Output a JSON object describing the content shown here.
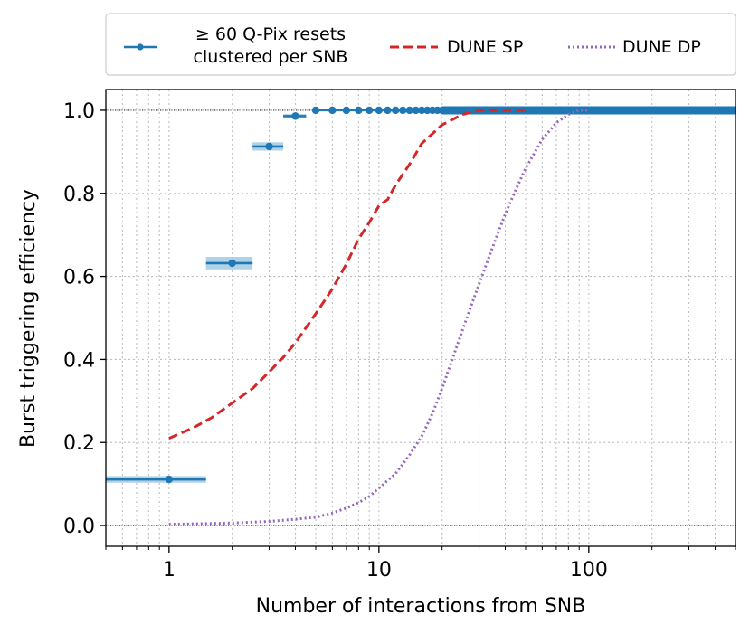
{
  "chart_data": {
    "type": "line",
    "xscale": "log",
    "xlim": [
      0.5,
      500
    ],
    "ylim": [
      -0.05,
      1.05
    ],
    "xlabel": "Number of interactions from SNB",
    "ylabel": "Burst triggering efficiency",
    "x_ticks": [
      {
        "value": 1,
        "label": "1"
      },
      {
        "value": 10,
        "label": "10"
      },
      {
        "value": 100,
        "label": "100"
      }
    ],
    "y_ticks": [
      {
        "value": 0.0,
        "label": "0.0"
      },
      {
        "value": 0.2,
        "label": "0.2"
      },
      {
        "value": 0.4,
        "label": "0.4"
      },
      {
        "value": 0.6,
        "label": "0.6"
      },
      {
        "value": 0.8,
        "label": "0.8"
      },
      {
        "value": 1.0,
        "label": "1.0"
      }
    ],
    "grid": true,
    "reference_lines_y": [
      0.0,
      1.0
    ],
    "legend": {
      "placement": "top-outside",
      "entries": [
        {
          "key": "qpix",
          "line1": "≥ 60 Q-Pix resets",
          "line2": "clustered per SNB"
        },
        {
          "key": "sp",
          "label": "DUNE SP"
        },
        {
          "key": "dp",
          "label": "DUNE DP"
        }
      ]
    },
    "colors": {
      "qpix": "#1f77b4",
      "qpix_band": "#a6cde6",
      "sp": "#d62728",
      "dp": "#9467bd"
    },
    "series": [
      {
        "name": "≥ 60 Q-Pix resets clustered per SNB",
        "key": "qpix",
        "style": "dots-with-step-bands",
        "points": [
          {
            "x": 1,
            "y": 0.111,
            "band_lo": 0.5,
            "band_hi": 1.5,
            "err": 0.008
          },
          {
            "x": 2,
            "y": 0.632,
            "band_lo": 1.5,
            "band_hi": 2.5,
            "err": 0.015
          },
          {
            "x": 3,
            "y": 0.913,
            "band_lo": 2.5,
            "band_hi": 3.5,
            "err": 0.01
          },
          {
            "x": 4,
            "y": 0.986,
            "band_lo": 3.5,
            "band_hi": 4.5,
            "err": 0.005
          },
          {
            "x": 5,
            "y": 1.0
          },
          {
            "x": 6,
            "y": 1.0
          },
          {
            "x": 7,
            "y": 1.0
          },
          {
            "x": 8,
            "y": 1.0
          },
          {
            "x": 9,
            "y": 1.0
          },
          {
            "x": 10,
            "y": 1.0
          },
          {
            "x": 11,
            "y": 1.0
          },
          {
            "x": 12,
            "y": 1.0
          },
          {
            "x": 13,
            "y": 1.0
          },
          {
            "x": 14,
            "y": 1.0
          },
          {
            "x": 15,
            "y": 1.0
          },
          {
            "x": 16,
            "y": 1.0
          },
          {
            "x": 17,
            "y": 1.0
          },
          {
            "x": 18,
            "y": 1.0
          },
          {
            "x": 19,
            "y": 1.0
          },
          {
            "x": 20,
            "y": 1.0
          }
        ],
        "tail_line": {
          "from": 20,
          "to": 500,
          "y": 1.0
        }
      },
      {
        "name": "DUNE SP",
        "key": "sp",
        "style": "dashed",
        "x": [
          1,
          1.3,
          1.6,
          2,
          2.5,
          3,
          3.5,
          4,
          5,
          6,
          7,
          8,
          9,
          10,
          11,
          12,
          14,
          16,
          20,
          25,
          30,
          40,
          50
        ],
        "y": [
          0.21,
          0.235,
          0.26,
          0.295,
          0.33,
          0.37,
          0.405,
          0.44,
          0.51,
          0.57,
          0.63,
          0.69,
          0.73,
          0.77,
          0.785,
          0.82,
          0.87,
          0.92,
          0.965,
          0.99,
          1.0,
          1.0,
          1.0
        ]
      },
      {
        "name": "DUNE DP",
        "key": "dp",
        "style": "dotted",
        "x": [
          1,
          2,
          3,
          4,
          5,
          6,
          7,
          8,
          9,
          10,
          12,
          14,
          16,
          18,
          20,
          22,
          25,
          28,
          32,
          36,
          40,
          45,
          50,
          60,
          70,
          80,
          90,
          100
        ],
        "y": [
          0.003,
          0.006,
          0.01,
          0.015,
          0.02,
          0.03,
          0.042,
          0.055,
          0.07,
          0.09,
          0.125,
          0.17,
          0.215,
          0.27,
          0.33,
          0.39,
          0.47,
          0.54,
          0.62,
          0.69,
          0.75,
          0.81,
          0.86,
          0.93,
          0.97,
          0.99,
          1.0,
          1.0
        ]
      }
    ]
  }
}
